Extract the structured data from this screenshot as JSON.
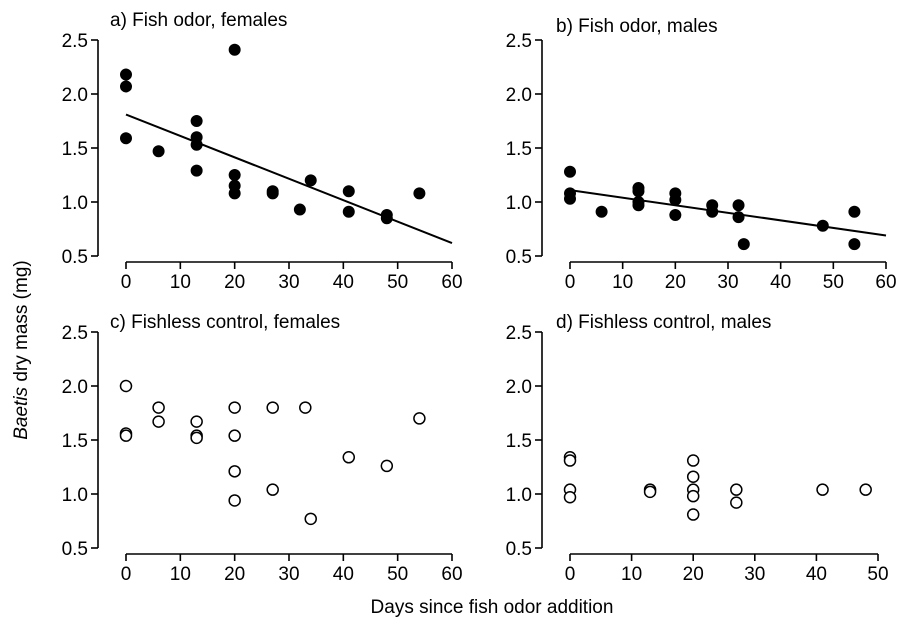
{
  "figure": {
    "ylabel_italic": "Baetis",
    "ylabel_rest": " dry mass (mg)",
    "xlabel": "Days since fish odor addition"
  },
  "chart_data": [
    {
      "type": "scatter",
      "title": "a) Fish odor, females",
      "xlabel": "Days since fish odor addition",
      "ylabel": "Baetis dry mass (mg)",
      "xlim": [
        0,
        60
      ],
      "ylim": [
        0.5,
        2.5
      ],
      "xticks": [
        0,
        10,
        20,
        30,
        40,
        50,
        60
      ],
      "yticks": [
        "0.5",
        "1.0",
        "1.5",
        "2.0",
        "2.5"
      ],
      "marker": "filled",
      "grid": false,
      "points": [
        {
          "x": 0,
          "y": 2.18
        },
        {
          "x": 0,
          "y": 2.07
        },
        {
          "x": 0,
          "y": 1.59
        },
        {
          "x": 6,
          "y": 1.47
        },
        {
          "x": 13,
          "y": 1.75
        },
        {
          "x": 13,
          "y": 1.6
        },
        {
          "x": 13,
          "y": 1.53
        },
        {
          "x": 13,
          "y": 1.29
        },
        {
          "x": 20,
          "y": 2.41
        },
        {
          "x": 20,
          "y": 1.25
        },
        {
          "x": 20,
          "y": 1.15
        },
        {
          "x": 20,
          "y": 1.08
        },
        {
          "x": 27,
          "y": 1.1
        },
        {
          "x": 27,
          "y": 1.08
        },
        {
          "x": 32,
          "y": 0.93
        },
        {
          "x": 34,
          "y": 1.2
        },
        {
          "x": 41,
          "y": 1.1
        },
        {
          "x": 41,
          "y": 0.91
        },
        {
          "x": 48,
          "y": 0.88
        },
        {
          "x": 48,
          "y": 0.85
        },
        {
          "x": 54,
          "y": 1.08
        }
      ],
      "fit_line": {
        "x": [
          0,
          60
        ],
        "y": [
          1.81,
          0.62
        ]
      }
    },
    {
      "type": "scatter",
      "title": "b) Fish odor, males",
      "xlabel": "Days since fish odor addition",
      "ylabel": "Baetis dry mass (mg)",
      "xlim": [
        0,
        60
      ],
      "ylim": [
        0.5,
        2.5
      ],
      "xticks": [
        0,
        10,
        20,
        30,
        40,
        50,
        60
      ],
      "yticks": [
        "0.5",
        "1.0",
        "1.5",
        "2.0",
        "2.5"
      ],
      "marker": "filled",
      "grid": false,
      "points": [
        {
          "x": 0,
          "y": 1.28
        },
        {
          "x": 0,
          "y": 1.08
        },
        {
          "x": 0,
          "y": 1.03
        },
        {
          "x": 6,
          "y": 0.91
        },
        {
          "x": 13,
          "y": 1.13
        },
        {
          "x": 13,
          "y": 1.1
        },
        {
          "x": 13,
          "y": 1.0
        },
        {
          "x": 13,
          "y": 0.97
        },
        {
          "x": 20,
          "y": 1.08
        },
        {
          "x": 20,
          "y": 1.02
        },
        {
          "x": 20,
          "y": 0.88
        },
        {
          "x": 27,
          "y": 0.97
        },
        {
          "x": 27,
          "y": 0.91
        },
        {
          "x": 32,
          "y": 0.97
        },
        {
          "x": 32,
          "y": 0.86
        },
        {
          "x": 33,
          "y": 0.61
        },
        {
          "x": 48,
          "y": 0.78
        },
        {
          "x": 54,
          "y": 0.91
        },
        {
          "x": 54,
          "y": 0.61
        }
      ],
      "fit_line": {
        "x": [
          0,
          60
        ],
        "y": [
          1.11,
          0.69
        ]
      }
    },
    {
      "type": "scatter",
      "title": "c) Fishless control, females",
      "xlabel": "Days since fish odor addition",
      "ylabel": "Baetis dry mass (mg)",
      "xlim": [
        0,
        60
      ],
      "ylim": [
        0.5,
        2.5
      ],
      "xticks": [
        0,
        10,
        20,
        30,
        40,
        50,
        60
      ],
      "yticks": [
        "0.5",
        "1.0",
        "1.5",
        "2.0",
        "2.5"
      ],
      "marker": "open",
      "grid": false,
      "points": [
        {
          "x": 0,
          "y": 2.0
        },
        {
          "x": 0,
          "y": 1.56
        },
        {
          "x": 0,
          "y": 1.54
        },
        {
          "x": 6,
          "y": 1.8
        },
        {
          "x": 6,
          "y": 1.67
        },
        {
          "x": 13,
          "y": 1.67
        },
        {
          "x": 13,
          "y": 1.54
        },
        {
          "x": 13,
          "y": 1.52
        },
        {
          "x": 20,
          "y": 1.8
        },
        {
          "x": 20,
          "y": 1.54
        },
        {
          "x": 20,
          "y": 1.21
        },
        {
          "x": 20,
          "y": 0.94
        },
        {
          "x": 27,
          "y": 1.8
        },
        {
          "x": 27,
          "y": 1.04
        },
        {
          "x": 33,
          "y": 1.8
        },
        {
          "x": 34,
          "y": 0.77
        },
        {
          "x": 41,
          "y": 1.34
        },
        {
          "x": 48,
          "y": 1.26
        },
        {
          "x": 54,
          "y": 1.7
        }
      ]
    },
    {
      "type": "scatter",
      "title": "d) Fishless control, males",
      "xlabel": "Days since fish odor addition",
      "ylabel": "Baetis dry mass (mg)",
      "xlim": [
        0,
        50
      ],
      "ylim": [
        0.5,
        2.5
      ],
      "xticks": [
        0,
        10,
        20,
        30,
        40,
        50
      ],
      "yticks": [
        "0.5",
        "1.0",
        "1.5",
        "2.0",
        "2.5"
      ],
      "marker": "open",
      "grid": false,
      "points": [
        {
          "x": 0,
          "y": 1.34
        },
        {
          "x": 0,
          "y": 1.31
        },
        {
          "x": 0,
          "y": 1.04
        },
        {
          "x": 0,
          "y": 0.97
        },
        {
          "x": 13,
          "y": 1.04
        },
        {
          "x": 13,
          "y": 1.02
        },
        {
          "x": 20,
          "y": 1.31
        },
        {
          "x": 20,
          "y": 1.16
        },
        {
          "x": 20,
          "y": 1.04
        },
        {
          "x": 20,
          "y": 0.98
        },
        {
          "x": 20,
          "y": 0.81
        },
        {
          "x": 27,
          "y": 1.04
        },
        {
          "x": 27,
          "y": 0.92
        },
        {
          "x": 41,
          "y": 1.04
        },
        {
          "x": 48,
          "y": 1.04
        }
      ]
    }
  ]
}
